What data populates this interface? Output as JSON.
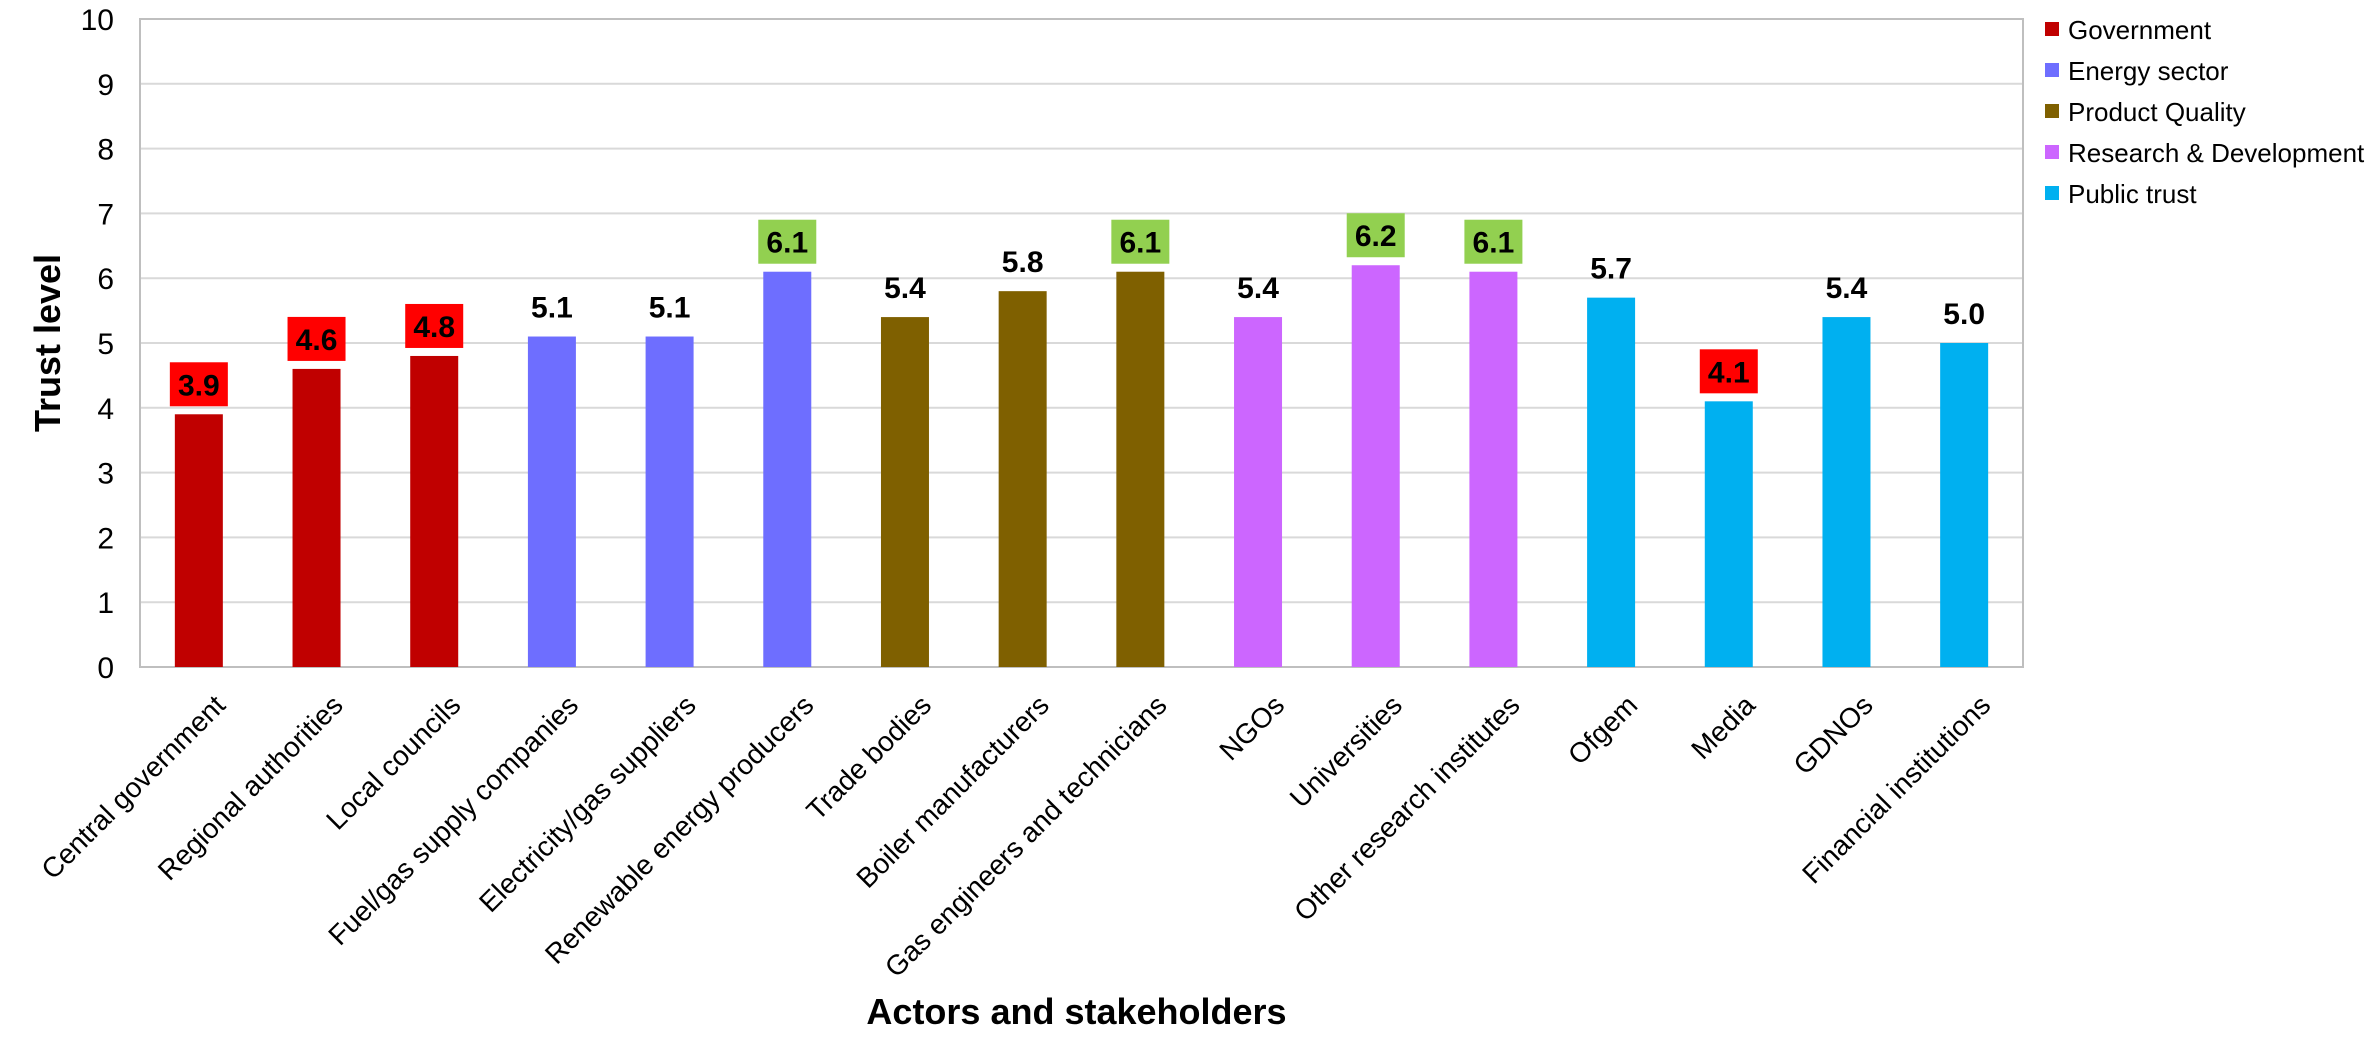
{
  "chart_data": {
    "type": "bar",
    "title": "",
    "xlabel": "Actors and stakeholders",
    "ylabel": "Trust level",
    "ylim": [
      0,
      10
    ],
    "yticks": [
      0,
      1,
      2,
      3,
      4,
      5,
      6,
      7,
      8,
      9,
      10
    ],
    "grid": true,
    "legend_position": "top-right",
    "groups": [
      {
        "name": "Government",
        "color": "#C00000"
      },
      {
        "name": "Energy sector",
        "color": "#6E6EFF"
      },
      {
        "name": "Product Quality",
        "color": "#7F6000"
      },
      {
        "name": "Research & Development",
        "color": "#CC66FF"
      },
      {
        "name": "Public trust",
        "color": "#00B0F0"
      }
    ],
    "highlight_colors": {
      "low": "#FF0000",
      "high": "#92D050"
    },
    "bars": [
      {
        "category": "Central government",
        "value": 3.9,
        "label": "3.9",
        "group": 0,
        "highlight": "low"
      },
      {
        "category": "Regional authorities",
        "value": 4.6,
        "label": "4.6",
        "group": 0,
        "highlight": "low"
      },
      {
        "category": "Local councils",
        "value": 4.8,
        "label": "4.8",
        "group": 0,
        "highlight": "low"
      },
      {
        "category": "Fuel/gas supply companies",
        "value": 5.1,
        "label": "5.1",
        "group": 1,
        "highlight": null
      },
      {
        "category": "Electricity/gas suppliers",
        "value": 5.1,
        "label": "5.1",
        "group": 1,
        "highlight": null
      },
      {
        "category": "Renewable energy producers",
        "value": 6.1,
        "label": "6.1",
        "group": 1,
        "highlight": "high"
      },
      {
        "category": "Trade bodies",
        "value": 5.4,
        "label": "5.4",
        "group": 2,
        "highlight": null
      },
      {
        "category": "Boiler manufacturers",
        "value": 5.8,
        "label": "5.8",
        "group": 2,
        "highlight": null
      },
      {
        "category": "Gas engineers and technicians",
        "value": 6.1,
        "label": "6.1",
        "group": 2,
        "highlight": "high"
      },
      {
        "category": "NGOs",
        "value": 5.4,
        "label": "5.4",
        "group": 3,
        "highlight": null
      },
      {
        "category": "Universities",
        "value": 6.2,
        "label": "6.2",
        "group": 3,
        "highlight": "high"
      },
      {
        "category": "Other research institutes",
        "value": 6.1,
        "label": "6.1",
        "group": 3,
        "highlight": "high"
      },
      {
        "category": "Ofgem",
        "value": 5.7,
        "label": "5.7",
        "group": 4,
        "highlight": null
      },
      {
        "category": "Media",
        "value": 4.1,
        "label": "4.1",
        "group": 4,
        "highlight": "low"
      },
      {
        "category": "GDNOs",
        "value": 5.4,
        "label": "5.4",
        "group": 4,
        "highlight": null
      },
      {
        "category": "Financial institutions",
        "value": 5.0,
        "label": "5.0",
        "group": 4,
        "highlight": null
      }
    ]
  }
}
